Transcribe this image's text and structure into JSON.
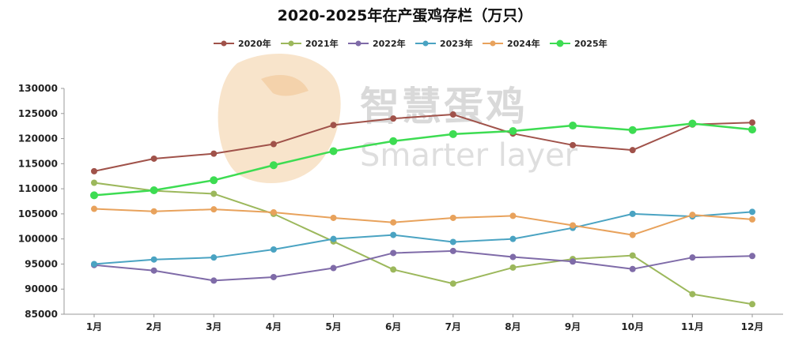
{
  "chart_data": {
    "type": "line",
    "title": "2020-2025年在产蛋鸡存栏（万只）",
    "xlabel": "",
    "ylabel": "",
    "categories": [
      "1月",
      "2月",
      "3月",
      "4月",
      "5月",
      "6月",
      "7月",
      "8月",
      "9月",
      "10月",
      "11月",
      "12月"
    ],
    "ylim": [
      85000,
      130000
    ],
    "yticks": [
      85000,
      90000,
      95000,
      100000,
      105000,
      110000,
      115000,
      120000,
      125000,
      130000
    ],
    "grid": false,
    "legend_position": "top",
    "series": [
      {
        "name": "2020年",
        "color": "#a0524a",
        "values": [
          113500,
          116000,
          117000,
          118900,
          122700,
          124000,
          124800,
          121000,
          118700,
          117700,
          122800,
          123200
        ]
      },
      {
        "name": "2021年",
        "color": "#9cb85c",
        "values": [
          111200,
          109600,
          109000,
          105000,
          99500,
          93900,
          91100,
          94300,
          96000,
          96700,
          89000,
          87000
        ]
      },
      {
        "name": "2022年",
        "color": "#7f6ba8",
        "values": [
          94800,
          93700,
          91700,
          92400,
          94200,
          97200,
          97600,
          96400,
          95500,
          94000,
          96300,
          96600
        ]
      },
      {
        "name": "2023年",
        "color": "#4aa3c2",
        "values": [
          95000,
          95900,
          96300,
          97900,
          100000,
          100800,
          99400,
          100000,
          102200,
          105000,
          104500,
          105400
        ]
      },
      {
        "name": "2024年",
        "color": "#e8a25c",
        "values": [
          106000,
          105500,
          105900,
          105300,
          104200,
          103300,
          104200,
          104600,
          102700,
          100800,
          104800,
          103900
        ]
      },
      {
        "name": "2025年",
        "color": "#3ddc52",
        "values": [
          108700,
          109700,
          111700,
          114700,
          117500,
          119500,
          120900,
          121500,
          122600,
          121700,
          123000,
          121800
        ]
      }
    ],
    "watermark": {
      "cn": "智慧蛋鸡",
      "en": "Smarter layer"
    }
  }
}
